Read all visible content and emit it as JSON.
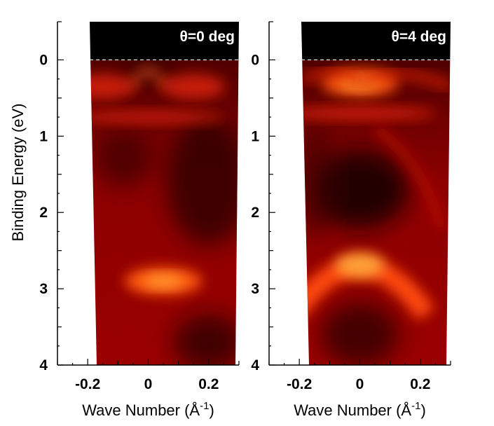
{
  "chart_data": [
    {
      "type": "heatmap",
      "panel_label": "θ=0 deg",
      "ylabel": "Binding Energy  (eV)",
      "xlabel": "Wave Number (Å",
      "xlabel_sup": "-1",
      "xlabel_close": ")",
      "xlim": [
        -0.3,
        0.3
      ],
      "ylim": [
        4,
        -0.5
      ],
      "xticks": [
        "-0.2",
        "0",
        "0.2"
      ],
      "yticks": [
        "0",
        "1",
        "2",
        "3",
        "4"
      ],
      "fermi_level_line": 0,
      "colormap": [
        "#000000",
        "#7a0000",
        "#e01000",
        "#ffe030"
      ],
      "features": [
        {
          "k": 0.0,
          "E": 0.1,
          "intensity": 0.7,
          "shape": "apex"
        },
        {
          "k": -0.15,
          "E": 0.35,
          "intensity": 0.75,
          "shape": "band"
        },
        {
          "k": 0.15,
          "E": 0.35,
          "intensity": 0.75,
          "shape": "band"
        },
        {
          "k": 0.0,
          "E": 0.75,
          "intensity": 0.7,
          "shape": "flat"
        },
        {
          "k": 0.05,
          "E": 2.9,
          "intensity": 1.0,
          "shape": "blob"
        }
      ]
    },
    {
      "type": "heatmap",
      "panel_label": "θ=4 deg",
      "ylabel": "",
      "xlabel": "Wave Number (Å",
      "xlabel_sup": "-1",
      "xlabel_close": ")",
      "xlim": [
        -0.3,
        0.3
      ],
      "ylim": [
        4,
        -0.5
      ],
      "xticks": [
        "-0.2",
        "0",
        "0.2"
      ],
      "yticks": [
        "0",
        "1",
        "2",
        "3",
        "4"
      ],
      "fermi_level_line": 0,
      "colormap": [
        "#000000",
        "#7a0000",
        "#e01000",
        "#ffe030"
      ],
      "features": [
        {
          "k": 0.0,
          "E": 0.3,
          "intensity": 0.95,
          "shape": "blob"
        },
        {
          "k": 0.0,
          "E": 0.7,
          "intensity": 0.8,
          "shape": "flat"
        },
        {
          "k": 0.0,
          "E": 2.6,
          "intensity": 1.0,
          "shape": "arch"
        }
      ]
    }
  ]
}
